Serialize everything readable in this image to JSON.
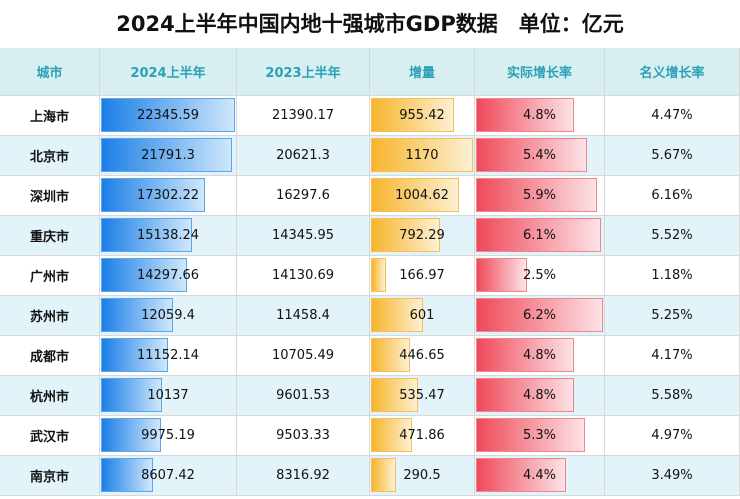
{
  "header": {
    "title": "2024上半年中国内地十强城市GDP数据　单位：亿元"
  },
  "table": {
    "columns": [
      "城市",
      "2024上半年",
      "2023上半年",
      "增量",
      "实际增长率",
      "名义增长率"
    ],
    "rows": [
      [
        "上海市",
        "22345.59",
        "21390.17",
        "955.42",
        "4.8%",
        "4.47%"
      ],
      [
        "北京市",
        "21791.3",
        "20621.3",
        "1170",
        "5.4%",
        "5.67%"
      ],
      [
        "深圳市",
        "17302.22",
        "16297.6",
        "1004.62",
        "5.9%",
        "6.16%"
      ],
      [
        "重庆市",
        "15138.24",
        "14345.95",
        "792.29",
        "6.1%",
        "5.52%"
      ],
      [
        "广州市",
        "14297.66",
        "14130.69",
        "166.97",
        "2.5%",
        "1.18%"
      ],
      [
        "苏州市",
        "12059.4",
        "11458.4",
        "601",
        "6.2%",
        "5.25%"
      ],
      [
        "成都市",
        "11152.14",
        "10705.49",
        "446.65",
        "4.8%",
        "4.17%"
      ],
      [
        "杭州市",
        "10137",
        "9601.53",
        "535.47",
        "4.8%",
        "5.58%"
      ],
      [
        "武汉市",
        "9975.19",
        "9503.33",
        "471.86",
        "5.3%",
        "4.97%"
      ],
      [
        "南京市",
        "8607.42",
        "8316.92",
        "290.5",
        "4.4%",
        "3.49%"
      ]
    ]
  }
}
